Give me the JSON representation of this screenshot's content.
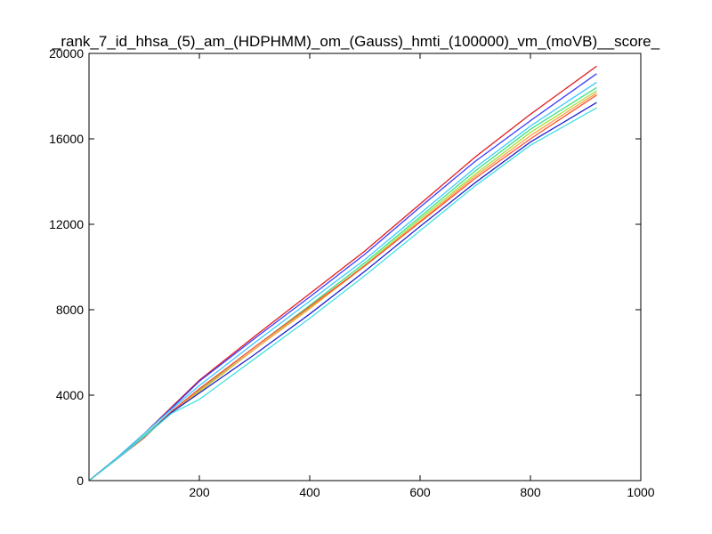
{
  "chart_data": {
    "type": "line",
    "title": "_rank_7_id_hhsa_(5)_am_(HDPHMM)_om_(Gauss)_hmti_(100000)_vm_(moVB)__score_",
    "xlabel": "",
    "ylabel": "",
    "xlim": [
      0,
      1000
    ],
    "ylim": [
      0,
      20000
    ],
    "x_ticks": [
      "200",
      "400",
      "600",
      "800",
      "1000"
    ],
    "y_ticks": [
      "0",
      "4000",
      "8000",
      "12000",
      "16000",
      "20000"
    ],
    "grid": false,
    "legend": "none",
    "series": [
      {
        "color": "#e31a1c",
        "x": [
          0,
          50,
          100,
          150,
          200,
          300,
          400,
          500,
          600,
          700,
          800,
          920
        ],
        "y": [
          0,
          1050,
          2200,
          3450,
          4700,
          6750,
          8750,
          10750,
          12950,
          15150,
          17150,
          19400
        ]
      },
      {
        "color": "#3b3bff",
        "x": [
          0,
          50,
          100,
          150,
          200,
          300,
          400,
          500,
          600,
          700,
          800,
          920
        ],
        "y": [
          0,
          1050,
          2200,
          3400,
          4650,
          6650,
          8600,
          10600,
          12800,
          14950,
          16850,
          19050
        ]
      },
      {
        "color": "#3cc8ff",
        "x": [
          0,
          50,
          100,
          150,
          200,
          300,
          400,
          500,
          600,
          700,
          800,
          920
        ],
        "y": [
          0,
          1050,
          2200,
          3350,
          4450,
          6450,
          8400,
          10350,
          12500,
          14650,
          16600,
          18650
        ]
      },
      {
        "color": "#40e080",
        "x": [
          0,
          50,
          100,
          150,
          200,
          300,
          400,
          500,
          600,
          700,
          800,
          920
        ],
        "y": [
          0,
          1000,
          2100,
          3250,
          4250,
          6250,
          8200,
          10200,
          12350,
          14500,
          16450,
          18400
        ]
      },
      {
        "color": "#a0e040",
        "x": [
          0,
          50,
          100,
          150,
          200,
          300,
          400,
          500,
          600,
          700,
          800,
          920
        ],
        "y": [
          0,
          1000,
          2050,
          3200,
          4150,
          6150,
          8100,
          10100,
          12250,
          14350,
          16300,
          18250
        ]
      },
      {
        "color": "#ffa040",
        "x": [
          0,
          50,
          100,
          150,
          200,
          300,
          400,
          500,
          600,
          700,
          800,
          920
        ],
        "y": [
          0,
          1000,
          2050,
          3250,
          4200,
          6150,
          8050,
          10050,
          12150,
          14250,
          16150,
          18150
        ]
      },
      {
        "color": "#ff5030",
        "x": [
          0,
          50,
          100,
          150,
          200,
          300,
          400,
          500,
          600,
          700,
          800,
          920
        ],
        "y": [
          0,
          1000,
          2000,
          3250,
          4300,
          6250,
          8150,
          10050,
          12100,
          14150,
          16000,
          18050
        ]
      },
      {
        "color": "#2020d0",
        "x": [
          0,
          50,
          100,
          150,
          200,
          300,
          400,
          500,
          600,
          700,
          800,
          920
        ],
        "y": [
          0,
          1000,
          2050,
          3200,
          4100,
          5900,
          7800,
          9800,
          11900,
          13950,
          15850,
          17700
        ]
      },
      {
        "color": "#40e0e0",
        "x": [
          0,
          50,
          100,
          150,
          200,
          300,
          400,
          500,
          600,
          700,
          800,
          920
        ],
        "y": [
          0,
          1000,
          2050,
          3150,
          3800,
          5700,
          7600,
          9600,
          11700,
          13800,
          15700,
          17450
        ]
      }
    ]
  }
}
